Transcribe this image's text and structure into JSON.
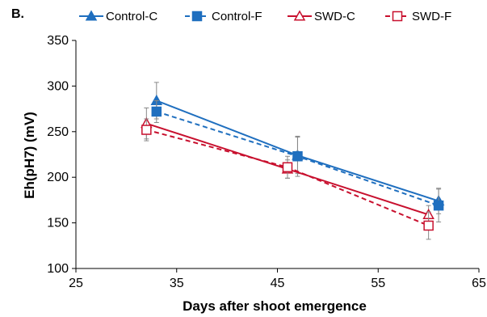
{
  "panel_label": "B.",
  "chart_data": {
    "type": "line",
    "xlabel": "Days after shoot emergence",
    "ylabel": "Eh(pH7) (mV)",
    "xlim": [
      25,
      65
    ],
    "ylim": [
      100,
      350
    ],
    "xticks": [
      25,
      35,
      45,
      55,
      65
    ],
    "yticks": [
      100,
      150,
      200,
      250,
      300,
      350
    ],
    "grid": false,
    "legend_position": "top",
    "series": [
      {
        "name": "Control-C",
        "color": "#1f6fbf",
        "marker": "filled-triangle",
        "dash": "solid",
        "points": [
          {
            "x": 33,
            "y": 284,
            "err": 20
          },
          {
            "x": 47,
            "y": 224,
            "err": 20
          },
          {
            "x": 61,
            "y": 174,
            "err": 14
          }
        ]
      },
      {
        "name": "Control-F",
        "color": "#1f6fbf",
        "marker": "filled-square",
        "dash": "dashed",
        "points": [
          {
            "x": 33,
            "y": 272,
            "err": 12
          },
          {
            "x": 47,
            "y": 223,
            "err": 22
          },
          {
            "x": 61,
            "y": 169,
            "err": 18
          }
        ]
      },
      {
        "name": "SWD-C",
        "color": "#c8102e",
        "marker": "open-triangle",
        "dash": "solid",
        "points": [
          {
            "x": 32,
            "y": 259,
            "err": 17
          },
          {
            "x": 46,
            "y": 209,
            "err": 10
          },
          {
            "x": 60,
            "y": 159,
            "err": 10
          }
        ]
      },
      {
        "name": "SWD-F",
        "color": "#c8102e",
        "marker": "open-square",
        "dash": "dashed",
        "points": [
          {
            "x": 32,
            "y": 252,
            "err": 12
          },
          {
            "x": 46,
            "y": 211,
            "err": 12
          },
          {
            "x": 60,
            "y": 147,
            "err": 15
          }
        ]
      }
    ]
  }
}
